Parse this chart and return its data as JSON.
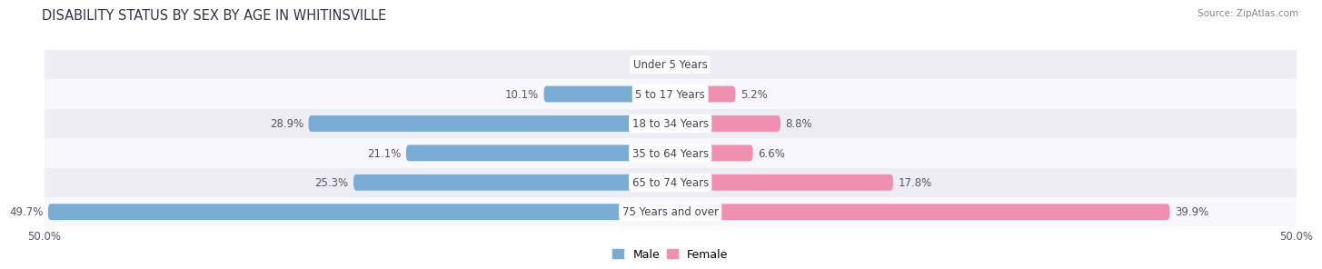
{
  "title": "DISABILITY STATUS BY SEX BY AGE IN WHITINSVILLE",
  "source": "Source: ZipAtlas.com",
  "categories": [
    "Under 5 Years",
    "5 to 17 Years",
    "18 to 34 Years",
    "35 to 64 Years",
    "65 to 74 Years",
    "75 Years and over"
  ],
  "male_values": [
    0.0,
    10.1,
    28.9,
    21.1,
    25.3,
    49.7
  ],
  "female_values": [
    0.0,
    5.2,
    8.8,
    6.6,
    17.8,
    39.9
  ],
  "male_color": "#7aadd4",
  "female_color": "#f090b0",
  "max_val": 50.0,
  "title_fontsize": 10.5,
  "label_fontsize": 8.5,
  "category_fontsize": 8.5,
  "axis_label_fontsize": 8.5,
  "legend_fontsize": 9,
  "bar_height": 0.55,
  "fig_bg": "#ffffff",
  "row_bg_light": "#ededf3",
  "row_bg_white": "#f8f8fc"
}
